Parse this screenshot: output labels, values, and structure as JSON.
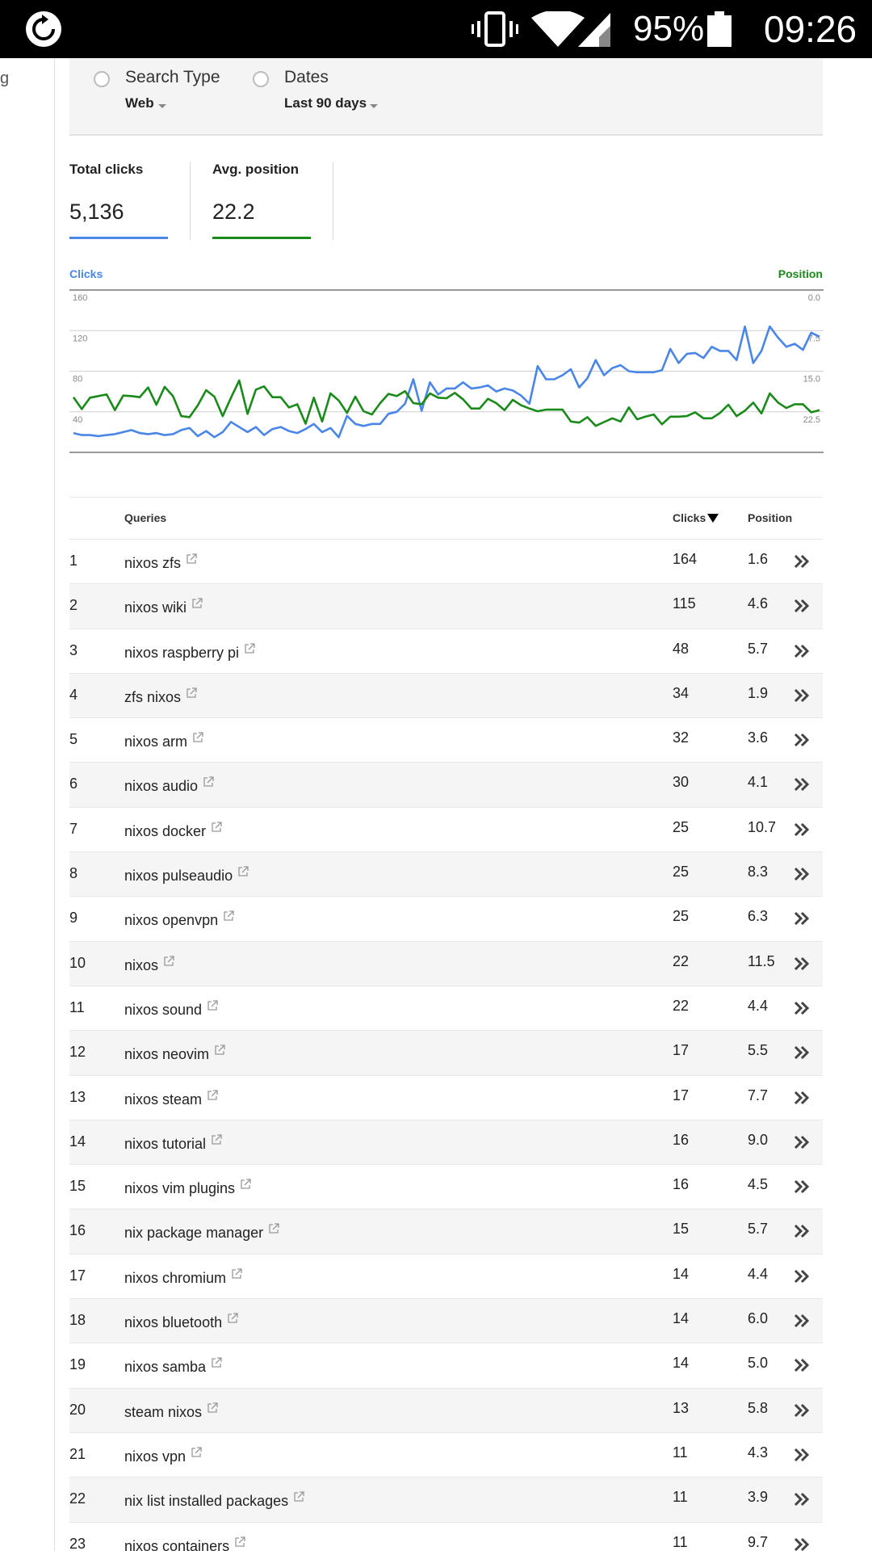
{
  "status_bar": {
    "battery_percent": "95%",
    "time": "09:26",
    "icons": [
      "sync-icon",
      "vibrate-icon",
      "wifi-icon",
      "signal-icon",
      "battery-icon"
    ]
  },
  "sidebar": {
    "edge_text": "g"
  },
  "filters": {
    "search_type": {
      "title": "Search Type",
      "value": "Web"
    },
    "dates": {
      "title": "Dates",
      "value": "Last 90 days"
    }
  },
  "metrics": {
    "total_clicks": {
      "label": "Total clicks",
      "value": "5,136",
      "color": "#4a86e8"
    },
    "avg_position": {
      "label": "Avg. position",
      "value": "22.2",
      "color": "#1a8a1a"
    }
  },
  "chart_data": {
    "type": "line",
    "left_axis": {
      "label": "Clicks",
      "ticks": [
        "160",
        "120",
        "80",
        "40"
      ],
      "range": [
        0,
        160
      ]
    },
    "right_axis": {
      "label": "Position",
      "ticks": [
        "0.0",
        "7.5",
        "15.0",
        "22.5"
      ],
      "range": [
        0,
        30
      ],
      "inverted": true
    },
    "grid": true,
    "series": [
      {
        "name": "Clicks",
        "axis": "left",
        "color": "#4a86e8",
        "values": [
          19,
          17,
          17,
          16,
          17,
          18,
          20,
          22,
          19,
          18,
          19,
          17,
          18,
          22,
          24,
          16,
          21,
          15,
          20,
          30,
          25,
          20,
          25,
          17,
          23,
          25,
          21,
          19,
          23,
          28,
          20,
          24,
          15,
          36,
          28,
          26,
          28,
          28,
          38,
          40,
          48,
          72,
          41,
          69,
          57,
          63,
          63,
          69,
          63,
          64,
          66,
          60,
          63,
          61,
          56,
          48,
          85,
          72,
          72,
          76,
          82,
          64,
          73,
          91,
          76,
          83,
          86,
          80,
          79,
          79,
          79,
          81,
          102,
          88,
          97,
          98,
          93,
          104,
          100,
          100,
          91,
          124,
          88,
          100,
          124,
          113,
          104,
          107,
          101,
          118,
          114
        ],
        "note": "values estimated from gridlines"
      },
      {
        "name": "Position",
        "axis": "right",
        "color": "#1a8a1a",
        "values": [
          19.8,
          22.0,
          19.9,
          19.6,
          19.3,
          22.2,
          19.5,
          19.6,
          19.8,
          18.0,
          21.2,
          17.9,
          19.6,
          23.3,
          23.5,
          21.3,
          18.5,
          19.7,
          23.3,
          19.9,
          16.7,
          22.9,
          18.4,
          17.8,
          19.8,
          19.8,
          21.7,
          21.1,
          24.7,
          19.9,
          24.3,
          19.1,
          20.4,
          22.7,
          19.7,
          22.4,
          23.0,
          20.9,
          19.2,
          19.6,
          18.7,
          20.9,
          21.1,
          19.1,
          19.9,
          20.0,
          19.0,
          20.2,
          21.9,
          21.9,
          20.1,
          20.9,
          22.2,
          20.3,
          21.3,
          21.9,
          22.4,
          22.1,
          22.1,
          22.1,
          24.3,
          24.5,
          23.5,
          25.1,
          24.4,
          23.7,
          24.3,
          21.7,
          23.9,
          23.4,
          23.0,
          24.8,
          23.4,
          23.4,
          23.3,
          22.6,
          23.7,
          23.7,
          22.7,
          21.2,
          23.3,
          22.3,
          20.8,
          22.8,
          19.1,
          20.8,
          21.8,
          21.1,
          21.1,
          22.6,
          22.2
        ],
        "note": "values estimated from gridlines"
      }
    ]
  },
  "table": {
    "headers": {
      "queries": "Queries",
      "clicks": "Clicks",
      "position": "Position"
    },
    "rows": [
      {
        "num": "1",
        "query": "nixos zfs",
        "clicks": "164",
        "position": "1.6"
      },
      {
        "num": "2",
        "query": "nixos wiki",
        "clicks": "115",
        "position": "4.6"
      },
      {
        "num": "3",
        "query": "nixos raspberry pi",
        "clicks": "48",
        "position": "5.7"
      },
      {
        "num": "4",
        "query": "zfs nixos",
        "clicks": "34",
        "position": "1.9"
      },
      {
        "num": "5",
        "query": "nixos arm",
        "clicks": "32",
        "position": "3.6"
      },
      {
        "num": "6",
        "query": "nixos audio",
        "clicks": "30",
        "position": "4.1"
      },
      {
        "num": "7",
        "query": "nixos docker",
        "clicks": "25",
        "position": "10.7"
      },
      {
        "num": "8",
        "query": "nixos pulseaudio",
        "clicks": "25",
        "position": "8.3"
      },
      {
        "num": "9",
        "query": "nixos openvpn",
        "clicks": "25",
        "position": "6.3"
      },
      {
        "num": "10",
        "query": "nixos",
        "clicks": "22",
        "position": "11.5"
      },
      {
        "num": "11",
        "query": "nixos sound",
        "clicks": "22",
        "position": "4.4"
      },
      {
        "num": "12",
        "query": "nixos neovim",
        "clicks": "17",
        "position": "5.5"
      },
      {
        "num": "13",
        "query": "nixos steam",
        "clicks": "17",
        "position": "7.7"
      },
      {
        "num": "14",
        "query": "nixos tutorial",
        "clicks": "16",
        "position": "9.0"
      },
      {
        "num": "15",
        "query": "nixos vim plugins",
        "clicks": "16",
        "position": "4.5"
      },
      {
        "num": "16",
        "query": "nix package manager",
        "clicks": "15",
        "position": "5.7"
      },
      {
        "num": "17",
        "query": "nixos chromium",
        "clicks": "14",
        "position": "4.4"
      },
      {
        "num": "18",
        "query": "nixos bluetooth",
        "clicks": "14",
        "position": "6.0"
      },
      {
        "num": "19",
        "query": "nixos samba",
        "clicks": "14",
        "position": "5.0"
      },
      {
        "num": "20",
        "query": "steam nixos",
        "clicks": "13",
        "position": "5.8"
      },
      {
        "num": "21",
        "query": "nixos vpn",
        "clicks": "11",
        "position": "4.3"
      },
      {
        "num": "22",
        "query": "nix list installed packages",
        "clicks": "11",
        "position": "3.9"
      },
      {
        "num": "23",
        "query": "nixos containers",
        "clicks": "11",
        "position": "9.7"
      }
    ]
  }
}
